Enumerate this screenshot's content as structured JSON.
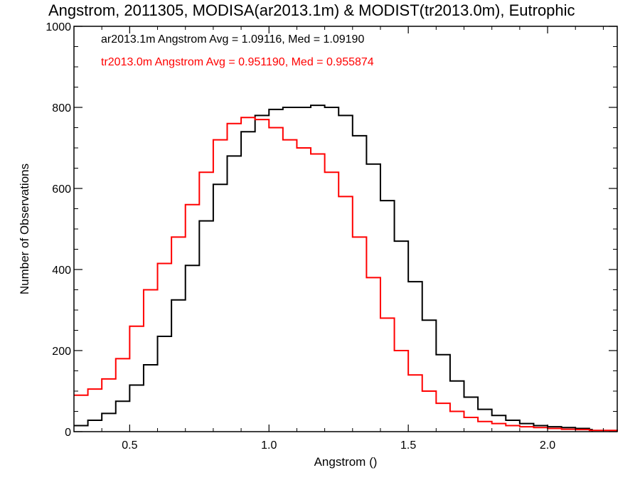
{
  "chart_data": {
    "type": "line",
    "title": "Angstrom, 2011305, MODISA(ar2013.1m) & MODIST(tr2013.0m), Eutrophic",
    "xlabel": "Angstrom ()",
    "ylabel": "Number of Observations",
    "xlim": [
      0.3,
      2.25
    ],
    "ylim": [
      0,
      1000
    ],
    "xticks": [
      0.5,
      1.0,
      1.5,
      2.0
    ],
    "xtick_labels": [
      "0.5",
      "1.0",
      "1.5",
      "2.0"
    ],
    "yticks": [
      0,
      200,
      400,
      600,
      800,
      1000
    ],
    "ytick_labels": [
      "0",
      "200",
      "400",
      "600",
      "800",
      "1000"
    ],
    "grid": false,
    "legend_placement": "top-left",
    "series": [
      {
        "name": "ar2013.1m",
        "legend": "ar2013.1m Angstrom Avg = 1.09116, Med = 1.09190",
        "color": "#000000",
        "x": [
          0.3,
          0.35,
          0.4,
          0.45,
          0.5,
          0.55,
          0.6,
          0.65,
          0.7,
          0.75,
          0.8,
          0.85,
          0.9,
          0.95,
          1.0,
          1.05,
          1.1,
          1.15,
          1.2,
          1.25,
          1.3,
          1.35,
          1.4,
          1.45,
          1.5,
          1.55,
          1.6,
          1.65,
          1.7,
          1.75,
          1.8,
          1.85,
          1.9,
          1.95,
          2.0,
          2.05,
          2.1,
          2.15,
          2.16
        ],
        "y": [
          15,
          28,
          45,
          75,
          115,
          165,
          235,
          325,
          410,
          520,
          610,
          680,
          740,
          780,
          795,
          800,
          800,
          805,
          800,
          780,
          730,
          660,
          570,
          470,
          370,
          275,
          190,
          125,
          85,
          55,
          40,
          28,
          20,
          15,
          12,
          10,
          8,
          5,
          0
        ]
      },
      {
        "name": "tr2013.0m",
        "legend": "tr2013.0m Angstrom Avg = 0.951190, Med = 0.955874",
        "color": "#ff0000",
        "x": [
          0.3,
          0.35,
          0.4,
          0.45,
          0.5,
          0.55,
          0.6,
          0.65,
          0.7,
          0.75,
          0.8,
          0.85,
          0.9,
          0.95,
          1.0,
          1.05,
          1.1,
          1.15,
          1.2,
          1.25,
          1.3,
          1.35,
          1.4,
          1.45,
          1.5,
          1.55,
          1.6,
          1.65,
          1.7,
          1.75,
          1.8,
          1.85,
          1.9,
          1.95,
          2.0,
          2.05,
          2.1,
          2.15,
          2.25
        ],
        "y": [
          90,
          105,
          130,
          180,
          260,
          350,
          415,
          480,
          560,
          640,
          720,
          760,
          775,
          770,
          750,
          720,
          700,
          685,
          640,
          580,
          480,
          380,
          280,
          200,
          140,
          100,
          70,
          50,
          35,
          25,
          20,
          15,
          12,
          10,
          8,
          6,
          5,
          3,
          0
        ]
      }
    ]
  }
}
